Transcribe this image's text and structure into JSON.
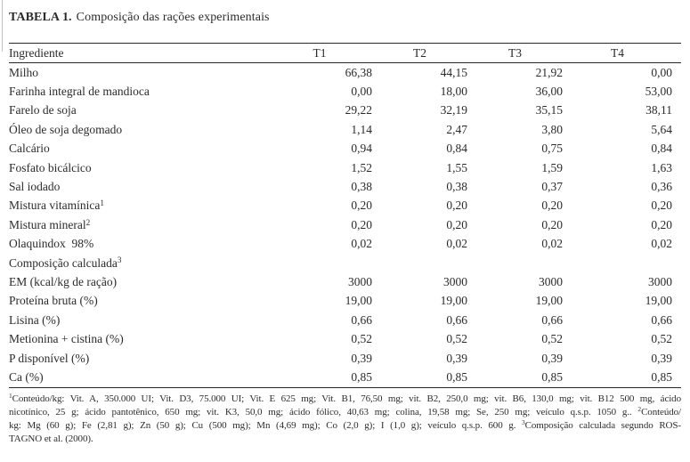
{
  "page": {
    "background": "#ffffff",
    "text_color": "#2b2b2b",
    "rule_color": "#262626"
  },
  "title": {
    "label": "TABELA 1.",
    "text": "Composição das rações experimentais"
  },
  "table": {
    "header": {
      "ingredient": "Ingrediente",
      "treatments": [
        "T1",
        "T2",
        "T3",
        "T4"
      ]
    },
    "rows": [
      {
        "label": "Milho",
        "values": [
          "66,38",
          "44,15",
          "21,92",
          "0,00"
        ]
      },
      {
        "label": "Farinha integral de mandioca",
        "values": [
          "0,00",
          "18,00",
          "36,00",
          "53,00"
        ]
      },
      {
        "label": "Farelo de soja",
        "values": [
          "29,22",
          "32,19",
          "35,15",
          "38,11"
        ]
      },
      {
        "label": "Óleo de soja degomado",
        "values": [
          "1,14",
          "2,47",
          "3,80",
          "5,64"
        ]
      },
      {
        "label": "Calcário",
        "values": [
          "0,94",
          "0,84",
          "0,75",
          "0,84"
        ]
      },
      {
        "label": "Fosfato bicálcico",
        "values": [
          "1,52",
          "1,55",
          "1,59",
          "1,63"
        ]
      },
      {
        "label": "Sal iodado",
        "values": [
          "0,38",
          "0,38",
          "0,37",
          "0,36"
        ]
      },
      {
        "label": "Mistura vitamínica",
        "sup": "1",
        "values": [
          "0,20",
          "0,20",
          "0,20",
          "0,20"
        ]
      },
      {
        "label": "Mistura mineral",
        "sup": "2",
        "values": [
          "0,20",
          "0,20",
          "0,20",
          "0,20"
        ]
      },
      {
        "label": "Olaquindox  98%",
        "values": [
          "0,02",
          "0,02",
          "0,02",
          "0,02"
        ]
      },
      {
        "label": "Composição calculada",
        "sup": "3",
        "values": [
          "",
          "",
          "",
          ""
        ]
      },
      {
        "label": "EM (kcal/kg de ração)",
        "values": [
          "3000",
          "3000",
          "3000",
          "3000"
        ]
      },
      {
        "label": "Proteína bruta (%)",
        "values": [
          "19,00",
          "19,00",
          "19,00",
          "19,00"
        ]
      },
      {
        "label": "Lisina (%)",
        "values": [
          "0,66",
          "0,66",
          "0,66",
          "0,66"
        ]
      },
      {
        "label": "Metionina + cistina (%)",
        "values": [
          "0,52",
          "0,52",
          "0,52",
          "0,52"
        ]
      },
      {
        "label": "P disponível (%)",
        "values": [
          "0,39",
          "0,39",
          "0,39",
          "0,39"
        ]
      },
      {
        "label": "Ca (%)",
        "values": [
          "0,85",
          "0,85",
          "0,85",
          "0,85"
        ]
      }
    ]
  },
  "footnote": {
    "lines": [
      {
        "justify": true,
        "segments": [
          {
            "sup": "1"
          },
          {
            "text": "Conteúdo/kg: Vit. A, 350.000 UI; Vit. D3, 75.000 UI; Vit. E 625 mg; Vit. B1, 76,50 mg; vit. B2, 250,0 mg; vit. B6, 130,0 mg; vit. B12 500 mg, ácido"
          }
        ]
      },
      {
        "justify": true,
        "segments": [
          {
            "text": "nicotínico, 25 g; ácido pantotênico, 650 mg; vit. K3, 50,0 mg; ácido fólico, 40,63 mg; colina, 19,58 mg; Se, 250 mg; veículo q.s.p. 1050 g.. "
          },
          {
            "sup": "2"
          },
          {
            "text": "Conteúdo/"
          }
        ]
      },
      {
        "justify": true,
        "segments": [
          {
            "text": "kg: Mg (60 g); Fe (2,81 g); Zn (50 g); Cu (500 mg); Mn (4,69 mg); Co (2,0 g); I (1,0 g); veículo q.s.p. 600 g. "
          },
          {
            "sup": "3"
          },
          {
            "text": "Composição calculada segundo ROS-"
          }
        ]
      },
      {
        "justify": false,
        "segments": [
          {
            "text": "TAGNO et al. (2000)."
          }
        ]
      }
    ]
  }
}
